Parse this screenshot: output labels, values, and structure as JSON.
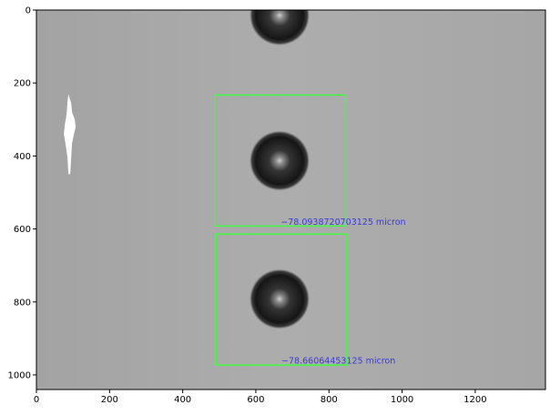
{
  "figure": {
    "x_axis": {
      "min": 0,
      "max": 1392,
      "ticks": [
        0,
        200,
        400,
        600,
        800,
        1000,
        1200
      ]
    },
    "y_axis": {
      "min": 0,
      "max": 1040,
      "inverted": true,
      "ticks": [
        0,
        200,
        400,
        600,
        800,
        1000
      ]
    },
    "image": {
      "background": "#a9a9a9",
      "droplets": [
        {
          "cx": 665,
          "cy": 15,
          "r": 82
        },
        {
          "cx": 665,
          "cy": 413,
          "r": 82
        },
        {
          "cx": 665,
          "cy": 792,
          "r": 82
        }
      ],
      "artifact": {
        "cx": 90,
        "cy": 330
      }
    },
    "detections": [
      {
        "box": {
          "x0": 487,
          "y0": 233,
          "x1": 845,
          "y1": 592
        },
        "label_x": 668,
        "label_y": 589,
        "label": "−78.0938720703125 micron"
      },
      {
        "box": {
          "x0": 489,
          "y0": 614,
          "x1": 847,
          "y1": 973
        },
        "label_x": 670,
        "label_y": 969,
        "label": "−78.66064453125 micron"
      }
    ],
    "colors": {
      "box": "#39ff3c",
      "label": "#3b3bd6",
      "axis": "#000000"
    }
  }
}
